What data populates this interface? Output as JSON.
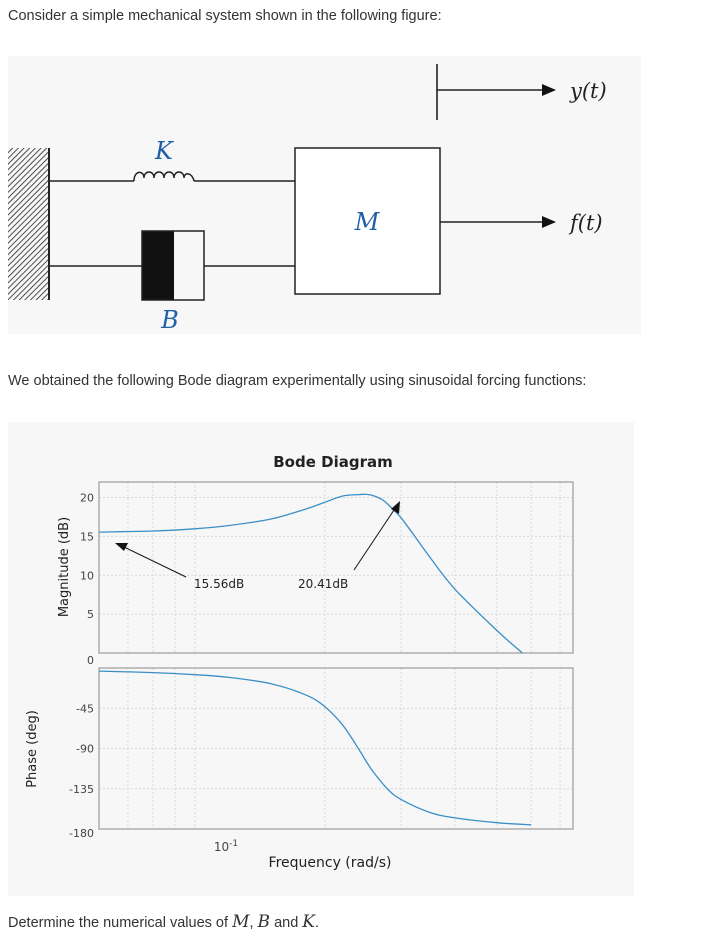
{
  "text": {
    "intro": "Consider a simple mechanical system shown in the following figure:",
    "middle": "We obtained the following Bode diagram experimentally using sinusoidal forcing functions:",
    "question_prefix": "Determine the numerical values of ",
    "question_M": "M",
    "question_sep1": ", ",
    "question_B": "B",
    "question_sep2": " and ",
    "question_K": "K",
    "question_end": "."
  },
  "mechanical_figure": {
    "spring_label": "K",
    "damper_label": "B",
    "mass_label": "M",
    "displacement_label": "y(t)",
    "force_label": "f(t)",
    "label_color": "#1f5fa8"
  },
  "chart_data": {
    "type": "line",
    "title": "Bode Diagram",
    "xlabel": "Frequency (rad/s)",
    "x_scale": "log",
    "x_tick_label_base": "10",
    "x_tick_label_exp": "-1",
    "line_color": "#3a8fc7",
    "magnitude": {
      "ylabel": "Magnitude (dB)",
      "ylim": [
        0,
        22
      ],
      "yticks": [
        "20",
        "15",
        "10",
        "5"
      ],
      "x": [
        0.06,
        0.08,
        0.1,
        0.12,
        0.15,
        0.18,
        0.2,
        0.22,
        0.24,
        0.25,
        0.26,
        0.27,
        0.28,
        0.3,
        0.32,
        0.35,
        0.4,
        0.5,
        0.6,
        0.7
      ],
      "values": [
        15.56,
        15.7,
        15.98,
        16.4,
        17.24,
        18.5,
        19.4,
        20.2,
        20.38,
        20.41,
        20.2,
        19.8,
        19.1,
        17.4,
        15.3,
        12.3,
        8.2,
        2.9,
        -1.0,
        -4.2
      ],
      "annotations": [
        "15.56dB",
        "20.41dB"
      ]
    },
    "phase": {
      "ylabel": "Phase (deg)",
      "ylim": [
        -180,
        0
      ],
      "yticks": [
        "0",
        "-45",
        "-90",
        "-135",
        "-180"
      ],
      "x": [
        0.06,
        0.08,
        0.1,
        0.12,
        0.15,
        0.18,
        0.2,
        0.22,
        0.24,
        0.25,
        0.26,
        0.28,
        0.3,
        0.35,
        0.4,
        0.5,
        0.6
      ],
      "values": [
        -3.5,
        -5.1,
        -7.5,
        -10.5,
        -17.6,
        -29.8,
        -43.3,
        -64.0,
        -91.6,
        -105.5,
        -117.5,
        -136.0,
        -146.9,
        -161.6,
        -167.6,
        -173.0,
        -175.3
      ]
    }
  }
}
